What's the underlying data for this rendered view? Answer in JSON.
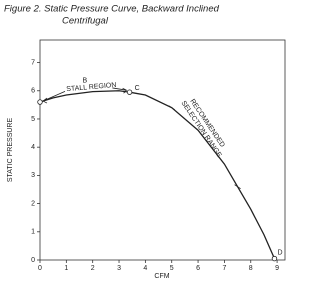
{
  "chart_data": {
    "type": "line",
    "title": "Figure 2. Static Pressure Curve, Backward Inclined",
    "subtitle": "Centrifugal",
    "x_label": "CFM",
    "y_label": "STATIC PRESSURE",
    "x": [
      0,
      0.5,
      1,
      2,
      3,
      3.4,
      4,
      5,
      6,
      7,
      7.5,
      8,
      8.5,
      8.9
    ],
    "series": [
      {
        "name": "Static pressure",
        "color": "#222222",
        "values": [
          5.6,
          5.75,
          5.85,
          5.97,
          6.0,
          5.95,
          5.85,
          5.4,
          4.6,
          3.4,
          2.6,
          1.8,
          0.9,
          0.05
        ]
      }
    ],
    "xlim": [
      0,
      9.3
    ],
    "ylim": [
      0,
      7.8
    ],
    "xticks": [
      0,
      1,
      2,
      3,
      4,
      5,
      6,
      7,
      8,
      9
    ],
    "yticks": [
      0,
      1,
      2,
      3,
      4,
      5,
      6,
      7
    ],
    "grid": false,
    "annotations": {
      "b": "B",
      "c": "C",
      "d": "D",
      "stall": "STALL REGION",
      "range_1": "RECOMMENDED",
      "range_2": "SELECTION RANGE"
    }
  }
}
